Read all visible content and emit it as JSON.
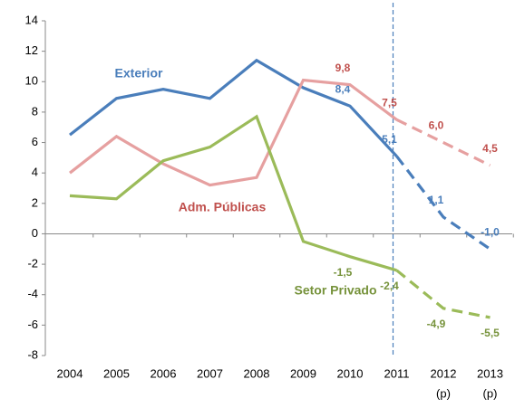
{
  "chart_data": {
    "type": "line",
    "categories": [
      "2004",
      "2005",
      "2006",
      "2007",
      "2008",
      "2009",
      "2010",
      "2011",
      "2012",
      "2013"
    ],
    "x_sublabels": [
      null,
      null,
      null,
      null,
      null,
      null,
      null,
      null,
      "(p)",
      "(p)"
    ],
    "projection_from": "2011",
    "series": [
      {
        "name": "Exterior",
        "color": "#4a7ebb",
        "label_color": "#4a7ebb",
        "values": [
          6.5,
          8.9,
          9.5,
          8.9,
          11.4,
          9.6,
          8.4,
          5.1,
          1.1,
          -1.0
        ],
        "value_labels": [
          null,
          null,
          null,
          null,
          null,
          null,
          "8,4",
          "5,1",
          "1,1",
          "-1,0"
        ]
      },
      {
        "name": "Adm. Públicas",
        "color": "#e6a0a0",
        "label_color": "#c0504d",
        "values": [
          4.0,
          6.4,
          4.6,
          3.2,
          3.7,
          10.1,
          9.8,
          7.5,
          6.0,
          4.5
        ],
        "value_labels": [
          null,
          null,
          null,
          null,
          null,
          null,
          "9,8",
          "7,5",
          "6,0",
          "4,5"
        ]
      },
      {
        "name": "Setor Privado",
        "color": "#9bbb59",
        "label_color": "#77933c",
        "values": [
          2.5,
          2.3,
          4.8,
          5.7,
          7.7,
          -0.5,
          -1.5,
          -2.4,
          -4.9,
          -5.5
        ],
        "value_labels": [
          null,
          null,
          null,
          null,
          null,
          null,
          "-1,5",
          "-2,4",
          "-4,9",
          "-5,5"
        ]
      }
    ],
    "ylim": [
      -8,
      14
    ],
    "yticks": [
      -8,
      -6,
      -4,
      -2,
      0,
      2,
      4,
      6,
      8,
      10,
      12,
      14
    ]
  }
}
